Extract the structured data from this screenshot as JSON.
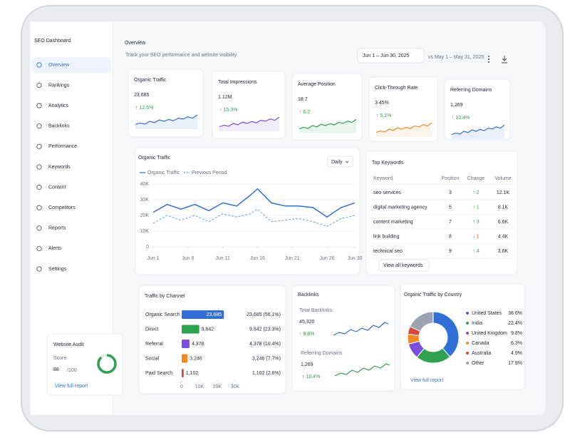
{
  "sidebar": {
    "title": "SEO Dashboard",
    "nav": [
      "Overview",
      "Rankings",
      "Analytics",
      "Backlinks",
      "Performance",
      "Keywords",
      "Content",
      "Competitors",
      "Reports",
      "Alerts",
      "Settings"
    ],
    "audit": {
      "title": "Website Audit",
      "score_label": "Score",
      "score": 88,
      "max": {
        "value": 100,
        "label": "/100"
      },
      "link": "View full report"
    }
  },
  "header": {
    "title": "Overview",
    "subtitle": "Track your SEO performance and website visibility",
    "date_range": "Jun 1 – Jun 30, 2025",
    "compare": "vs May 1 – May 31, 2025"
  },
  "kpis": [
    {
      "label": "Organic Traffic",
      "value": "23,685",
      "change": "↑ 12.5%",
      "color": "#2f6fd6"
    },
    {
      "label": "Total Impressions",
      "value": "1.12M",
      "change": "↑ 15.3%",
      "color": "#7c4ddb"
    },
    {
      "label": "Average Position",
      "value": "18.7",
      "change": "↑ 6.2",
      "color": "#2ea24f"
    },
    {
      "label": "Click-Through Rate",
      "value": "3.45%",
      "change": "↑ 5.1%",
      "color": "#f08a24"
    },
    {
      "label": "Referring Domains",
      "value": "1,269",
      "change": "↑ 10.4%",
      "color": "#2f6fd6"
    }
  ],
  "organic_chart": {
    "type": "line",
    "title": "Organic Traffic",
    "period": "Daily",
    "x": [
      1,
      3,
      5,
      7,
      9,
      11,
      13,
      15,
      16,
      18,
      20,
      22,
      24,
      26,
      28,
      30
    ],
    "series": [
      {
        "name": "Organic Traffic",
        "color": "#2f6fd6",
        "dashed": false,
        "values": [
          22000,
          27000,
          24000,
          27000,
          23000,
          28000,
          26000,
          33000,
          37000,
          28000,
          26000,
          26000,
          25000,
          19000,
          25000,
          28000
        ]
      },
      {
        "name": "Previous Period",
        "color": "#6f9be6",
        "dashed": true,
        "values": [
          15000,
          20000,
          17000,
          20000,
          16000,
          21000,
          19000,
          21000,
          24000,
          16000,
          17000,
          18000,
          16000,
          13000,
          18000,
          20000
        ]
      }
    ],
    "xlim": [
      1,
      30
    ],
    "xticks": [
      {
        "value": 1,
        "label": "Jun 1"
      },
      {
        "value": 6,
        "label": "Jun 6"
      },
      {
        "value": 11,
        "label": "Jun 11"
      },
      {
        "value": 16,
        "label": "Jun 16"
      },
      {
        "value": 21,
        "label": "Jun 21"
      },
      {
        "value": 26,
        "label": "Jun 26"
      },
      {
        "value": 30,
        "label": "Jun 30"
      }
    ],
    "ylim": [
      0,
      40000
    ],
    "yticks": [
      0,
      {
        "value": 10000,
        "label": "10K"
      },
      {
        "value": 20000,
        "label": "20K"
      },
      {
        "value": 30000,
        "label": "30K"
      },
      {
        "value": 40000,
        "label": "40K"
      }
    ],
    "grid": true
  },
  "keywords": {
    "title": "Top Keywords",
    "columns": [
      "Keyword",
      "Position",
      "Change",
      "Volume"
    ],
    "rows": [
      [
        "seo services",
        "3",
        "↑ 2",
        "12.1K"
      ],
      [
        "digital marketing agency",
        "5",
        "↑ 1",
        "8.1K"
      ],
      [
        "content marketing",
        "7",
        "↑ 3",
        "6.6K"
      ],
      [
        "link building",
        "8",
        "↓ 1",
        "4.4K"
      ],
      [
        "technical seo",
        "9",
        "↑ 4",
        "3.6K"
      ]
    ],
    "link": "View all keywords"
  },
  "channels": {
    "type": "bar",
    "title": "Traffic by Channel",
    "categories": [
      "Organic Search",
      "Direct",
      "Referral",
      "Social",
      "Paid Search"
    ],
    "values": [
      23685,
      9842,
      4378,
      3246,
      1102
    ],
    "bar_labels": [
      "23,685",
      "9,842",
      "4,378",
      "3,246",
      "1,102"
    ],
    "value_labels": [
      "23,685 (56.1%)",
      "9,842 (23.3%)",
      "4,378 (10.4%)",
      "3,246 (7.7%)",
      "1,102 (2.6%)"
    ],
    "colors": [
      "#2f6fd6",
      "#2ea24f",
      "#7c4ddb",
      "#f08a24",
      "#d9453d"
    ],
    "xlim": [
      0,
      30000
    ],
    "xticks": [
      0,
      {
        "value": 10000,
        "label": "10K"
      },
      {
        "value": 20000,
        "label": "20K"
      },
      {
        "value": 30000,
        "label": "30K"
      }
    ]
  },
  "backlinks": {
    "title": "Backlinks",
    "total_label": "Total Backlinks",
    "total": "45,320",
    "total_change": "↑ 9.8%",
    "ref_label": "Referring Domains",
    "ref": "1,269",
    "ref_change": "↑ 10.4%"
  },
  "countries": {
    "type": "pie",
    "title": "Organic Traffic by Country",
    "categories": [
      "United States",
      "India",
      "United Kingdom",
      "Canada",
      "Australia",
      "Other"
    ],
    "values": [
      38.6,
      22.4,
      9.8,
      6.3,
      4.9,
      17.9
    ],
    "value_labels": [
      "38.6%",
      "22.4%",
      "9.8%",
      "6.3%",
      "4.9%",
      "17.9%"
    ],
    "colors": [
      "#2f6fd6",
      "#2ea24f",
      "#7c4ddb",
      "#f08a24",
      "#d9453d",
      "#9aa3af"
    ],
    "link": "View full report"
  }
}
